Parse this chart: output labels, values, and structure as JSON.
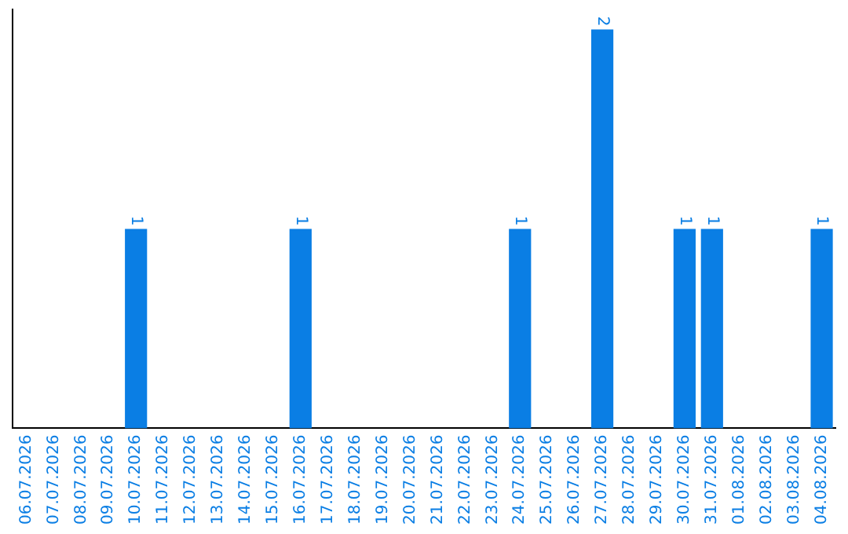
{
  "chart_data": {
    "type": "bar",
    "categories": [
      "06.07.2026",
      "07.07.2026",
      "08.07.2026",
      "09.07.2026",
      "10.07.2026",
      "11.07.2026",
      "12.07.2026",
      "13.07.2026",
      "14.07.2026",
      "15.07.2026",
      "16.07.2026",
      "17.07.2026",
      "18.07.2026",
      "19.07.2026",
      "20.07.2026",
      "21.07.2026",
      "22.07.2026",
      "23.07.2026",
      "24.07.2026",
      "25.07.2026",
      "26.07.2026",
      "27.07.2026",
      "28.07.2026",
      "29.07.2026",
      "30.07.2026",
      "31.07.2026",
      "01.08.2026",
      "02.08.2026",
      "03.08.2026",
      "04.08.2026"
    ],
    "values": [
      0,
      0,
      0,
      0,
      1,
      0,
      0,
      0,
      0,
      0,
      1,
      0,
      0,
      0,
      0,
      0,
      0,
      0,
      1,
      0,
      0,
      2,
      0,
      0,
      1,
      1,
      0,
      0,
      0,
      1
    ],
    "value_labels": [
      null,
      null,
      null,
      null,
      "1",
      null,
      null,
      null,
      null,
      null,
      "1",
      null,
      null,
      null,
      null,
      null,
      null,
      null,
      "1",
      null,
      null,
      "2",
      null,
      null,
      "1",
      "1",
      null,
      null,
      null,
      "1"
    ],
    "color": "#0a7ee4",
    "ylim": [
      0,
      2.1
    ],
    "tick_labels": "x",
    "grid": false,
    "legend": false
  }
}
